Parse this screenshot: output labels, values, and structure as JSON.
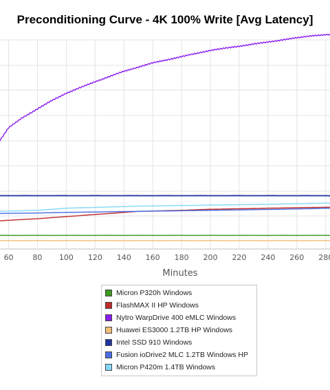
{
  "chart_data": {
    "type": "line",
    "title": "Preconditioning Curve - 4K 100% Write [Avg Latency]",
    "xlabel": "Minutes",
    "ylabel": "",
    "xlim": [
      54,
      283
    ],
    "ylim": [
      0,
      100
    ],
    "x_ticks": [
      60,
      80,
      100,
      120,
      140,
      160,
      180,
      200,
      220,
      240,
      260,
      280
    ],
    "grid": true,
    "legend_position": "bottom-center",
    "series": [
      {
        "name": "Micron P320h Windows",
        "color": "#3c9a1e",
        "x": [
          54,
          100,
          150,
          200,
          250,
          283
        ],
        "y": [
          6.5,
          6.5,
          6.5,
          6.5,
          6.5,
          6.5
        ]
      },
      {
        "name": "FlashMAX II HP Windows",
        "color": "#c12a2a",
        "x": [
          54,
          80,
          100,
          120,
          150,
          180,
          200,
          240,
          283
        ],
        "y": [
          13.5,
          14.5,
          15.5,
          16.5,
          18.0,
          18.5,
          19.0,
          19.5,
          20.0
        ]
      },
      {
        "name": "Nytro WarpDrive 400 eMLC Windows",
        "color": "#8a1cf0",
        "x": [
          54,
          60,
          70,
          80,
          90,
          100,
          120,
          140,
          160,
          180,
          200,
          220,
          240,
          260,
          270,
          283
        ],
        "y": [
          52.0,
          58.0,
          63.0,
          67.0,
          71.0,
          74.5,
          80.0,
          85.0,
          89.0,
          92.0,
          95.0,
          97.0,
          99.0,
          101.0,
          102.0,
          102.5
        ]
      },
      {
        "name": "Huawei ES3000 1.2TB HP Windows",
        "color": "#f2c07a",
        "x": [
          54,
          100,
          150,
          200,
          250,
          283
        ],
        "y": [
          4.0,
          4.0,
          4.0,
          4.0,
          4.0,
          4.0
        ]
      },
      {
        "name": "Intel SSD 910 Windows",
        "color": "#1f34a3",
        "x": [
          54,
          100,
          150,
          200,
          250,
          283
        ],
        "y": [
          25.5,
          25.5,
          25.5,
          25.5,
          25.5,
          25.5
        ]
      },
      {
        "name": "Fusion ioDrive2 MLC 1.2TB Windows HP",
        "color": "#4a6fe3",
        "x": [
          54,
          80,
          100,
          150,
          200,
          250,
          283
        ],
        "y": [
          17.0,
          17.2,
          17.5,
          18.0,
          18.5,
          19.0,
          19.5
        ]
      },
      {
        "name": "Micron P420m 1.4TB Windows",
        "color": "#86d8f7",
        "x": [
          54,
          80,
          100,
          150,
          200,
          250,
          283
        ],
        "y": [
          18.0,
          18.5,
          19.5,
          20.5,
          21.0,
          21.5,
          22.0
        ]
      }
    ]
  }
}
